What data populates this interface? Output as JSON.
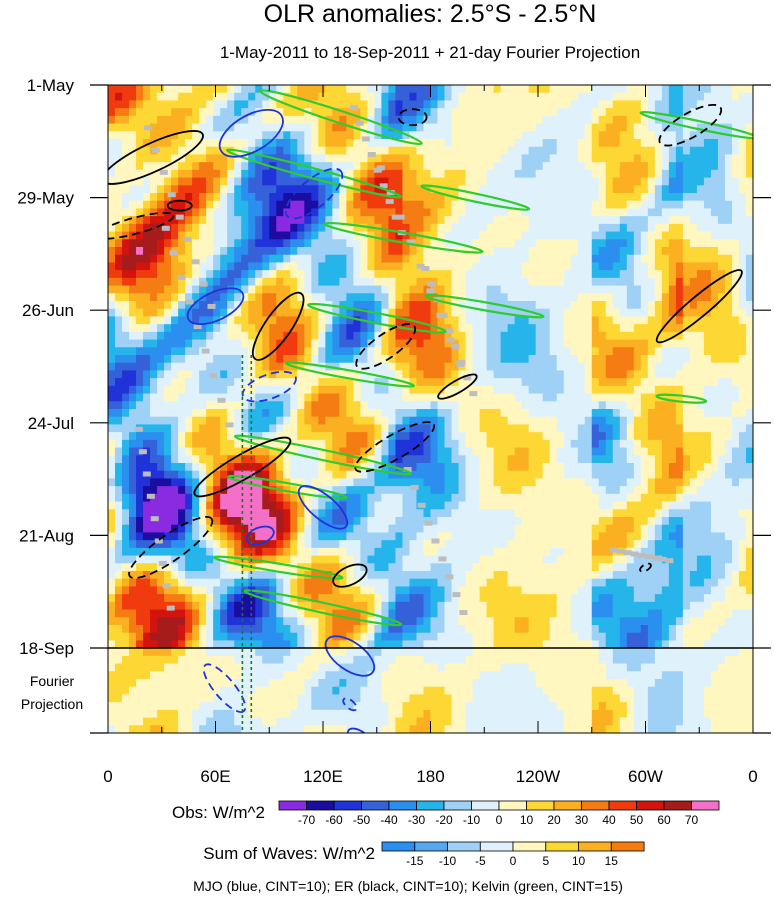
{
  "chart_data": {
    "type": "heatmap",
    "title": "OLR anomalies: 2.5°S - 2.5°N",
    "subtitle": "1-May-2011 to 18-Sep-2011 + 21-day Fourier Projection",
    "x_axis": {
      "ticks": [
        "0",
        "60E",
        "120E",
        "180",
        "120W",
        "60W",
        "0"
      ],
      "range_lon": [
        0,
        360
      ]
    },
    "y_axis": {
      "ticks": [
        "1-May",
        "29-May",
        "26-Jun",
        "24-Jul",
        "21-Aug",
        "18-Sep"
      ],
      "projection_label_line1": "Fourier",
      "projection_label_line2": "Projection",
      "observed_days": 140,
      "projection_days": 21
    },
    "colorbar_obs": {
      "label": "Obs: W/m^2",
      "levels": [
        "-70",
        "-60",
        "-50",
        "-40",
        "-30",
        "-20",
        "-10",
        "0",
        "10",
        "20",
        "30",
        "40",
        "50",
        "60",
        "70"
      ],
      "colors": [
        "#8a2be2",
        "#1a0da0",
        "#1f33d8",
        "#3561d9",
        "#2b8ff0",
        "#26b5ea",
        "#9ed1f5",
        "#dff2fb",
        "#fff7bf",
        "#fdd835",
        "#fbb022",
        "#f57c12",
        "#f03b0f",
        "#d3140e",
        "#a61c1c",
        "#f470c8"
      ]
    },
    "colorbar_waves": {
      "label": "Sum of Waves: W/m^2",
      "levels": [
        "-15",
        "-10",
        "-5",
        "0",
        "5",
        "10",
        "15"
      ],
      "colors": [
        "#2b8ff0",
        "#56a7f2",
        "#9ed1f5",
        "#dff2fb",
        "#fff7bf",
        "#fdd835",
        "#fbb022",
        "#f57c12"
      ]
    },
    "caption": "MJO (blue, CINT=10); ER (black, CINT=10); Kelvin (green, CINT=15)",
    "contours": {
      "mjo": {
        "color": "#1f33d8",
        "cint": 10
      },
      "er": {
        "color": "#000000",
        "cint": 10
      },
      "kelvin": {
        "color": "#2ecc2e",
        "cint": 15
      }
    },
    "reference_lines_lon": [
      75,
      80
    ]
  }
}
